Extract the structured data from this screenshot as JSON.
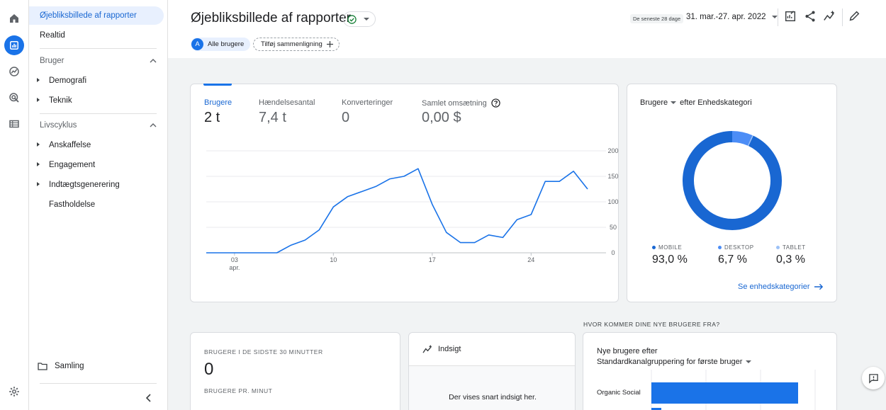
{
  "sidebar": {
    "items": [
      {
        "label": "Øjebliksbillede af rapporter"
      },
      {
        "label": "Realtid"
      }
    ],
    "sections": [
      {
        "label": "Bruger",
        "items": [
          "Demografi",
          "Teknik"
        ]
      },
      {
        "label": "Livscyklus",
        "items": [
          "Anskaffelse",
          "Engagement",
          "Indtægtsgenerering",
          "Fastholdelse"
        ]
      }
    ],
    "collection_label": "Samling"
  },
  "header": {
    "title": "Øjebliksbillede af rapporter",
    "chip_all_users": "Alle brugere",
    "chip_avatar": "A",
    "chip_add_comparison": "Tilføj sammenligning",
    "date_preset": "De seneste 28 dage",
    "date_range": "31. mar.-27. apr. 2022"
  },
  "metrics": [
    {
      "label": "Brugere",
      "value": "2 t"
    },
    {
      "label": "Hændelsesantal",
      "value": "7,4 t"
    },
    {
      "label": "Konverteringer",
      "value": "0"
    },
    {
      "label": "Samlet omsætning",
      "value": "0,00 $"
    }
  ],
  "chart_data": [
    {
      "type": "line",
      "x": [
        1,
        2,
        3,
        4,
        5,
        6,
        7,
        8,
        9,
        10,
        11,
        12,
        13,
        14,
        15,
        16,
        17,
        18,
        19,
        20,
        21,
        22,
        23,
        24,
        25,
        26,
        27,
        28
      ],
      "x_ticks": [
        {
          "day": 3,
          "label": "03",
          "sub": "apr."
        },
        {
          "day": 10,
          "label": "10",
          "sub": ""
        },
        {
          "day": 17,
          "label": "17",
          "sub": ""
        },
        {
          "day": 24,
          "label": "24",
          "sub": ""
        }
      ],
      "values": [
        0,
        0,
        0,
        0,
        0,
        0,
        15,
        25,
        45,
        90,
        110,
        120,
        130,
        145,
        150,
        165,
        95,
        40,
        20,
        20,
        35,
        30,
        65,
        75,
        140,
        140,
        160,
        125
      ],
      "yticks": [
        "200",
        "150",
        "100",
        "50",
        "0"
      ],
      "ylim": [
        0,
        200
      ],
      "color": "#1a73e8"
    },
    {
      "type": "pie",
      "title_metric": "Brugere",
      "title_rest": "efter Enhedskategori",
      "slices": [
        {
          "label": "MOBILE",
          "value": 93.0,
          "display": "93,0 %",
          "color": "#1967d2"
        },
        {
          "label": "DESKTOP",
          "value": 6.7,
          "display": "6,7 %",
          "color": "#4c8df6"
        },
        {
          "label": "TABLET",
          "value": 0.3,
          "display": "0,3 %",
          "color": "#9cc1f7"
        }
      ]
    },
    {
      "type": "bar",
      "categories": [
        "Organic Social"
      ],
      "values": [
        1
      ],
      "color": "#1a73e8"
    }
  ],
  "device_link": "Se enhedskategorier",
  "realtime": {
    "heading": "BRUGERE I DE SIDSTE 30 MINUTTER",
    "value": "0",
    "subheading": "BRUGERE PR. MINUT"
  },
  "insights": {
    "title": "Indsigt",
    "message": "Der vises snart indsigt her."
  },
  "acquisition": {
    "question": "HVOR KOMMER DINE NYE BRUGERE FRA?",
    "title_line1": "Nye brugere efter",
    "title_line2": "Standardkanalgruppering for første bruger"
  }
}
